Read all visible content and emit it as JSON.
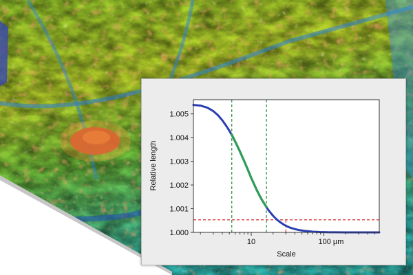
{
  "background": {
    "description_icon": "surface-topography-icon",
    "colors": [
      "#2f3aa8",
      "#1e8fd6",
      "#29c2c0",
      "#49b64a",
      "#a9cf2a",
      "#e6d62a",
      "#f0a33a",
      "#d8462e"
    ]
  },
  "chart_data": {
    "type": "line",
    "title": "",
    "xlabel": "Scale",
    "ylabel": "Relative length",
    "xscale": "log",
    "xlim": [
      1.6,
      580
    ],
    "ylim": [
      1.0,
      1.0056
    ],
    "xticks": [
      {
        "value": 10,
        "label": "10"
      },
      {
        "value": 100,
        "label": "100 µm"
      }
    ],
    "yticks": [
      {
        "value": 1.0,
        "label": "1.000"
      },
      {
        "value": 1.001,
        "label": "1.001"
      },
      {
        "value": 1.002,
        "label": "1.002"
      },
      {
        "value": 1.003,
        "label": "1.003"
      },
      {
        "value": 1.004,
        "label": "1.004"
      },
      {
        "value": 1.005,
        "label": "1.005"
      }
    ],
    "grid": false,
    "legend": "none",
    "series": [
      {
        "color": "#2a3eb1",
        "x": [
          1.6,
          2,
          2.5,
          3,
          3.5,
          4,
          4.5,
          5,
          5.5,
          6,
          6.5,
          7,
          8,
          9,
          10,
          11,
          12,
          13,
          14,
          15,
          16,
          17,
          18,
          20,
          22,
          25,
          28,
          30,
          32,
          35,
          40,
          45,
          50,
          55,
          60,
          70,
          80,
          90,
          100,
          120,
          150,
          200,
          250,
          300,
          400,
          500,
          580
        ],
        "y": [
          1.00538,
          1.00535,
          1.00526,
          1.00512,
          1.00494,
          1.00473,
          1.00451,
          1.00429,
          1.00406,
          1.00384,
          1.00362,
          1.00341,
          1.00301,
          1.00264,
          1.0023,
          1.00202,
          1.00177,
          1.00156,
          1.00138,
          1.00123,
          1.00109,
          1.00097,
          1.00087,
          1.0007,
          1.00057,
          1.00043,
          1.00033,
          1.00028,
          1.00024,
          1.00019,
          1.00014,
          1.0001,
          1.00008,
          1.00006,
          1.00005,
          1.00003,
          1.00002,
          1.00001,
          1.00001,
          1.000005,
          1.000002,
          1.0,
          1.0,
          1.0,
          1.0,
          1.0,
          1.0
        ]
      },
      {
        "color": "#2e9e55",
        "x": [
          5.4,
          6,
          6.5,
          7,
          8,
          9,
          10,
          11,
          12,
          13,
          14,
          15,
          16.2
        ],
        "y": [
          1.00413,
          1.00384,
          1.00362,
          1.00341,
          1.00301,
          1.00264,
          1.0023,
          1.00202,
          1.00177,
          1.00156,
          1.00138,
          1.00123,
          1.00108
        ]
      }
    ],
    "reference_lines": [
      {
        "orientation": "vertical",
        "x": 5.4,
        "color": "#1f8a3a",
        "style": "dashed"
      },
      {
        "orientation": "vertical",
        "x": 16.2,
        "color": "#1f8a3a",
        "style": "dashed"
      },
      {
        "orientation": "horizontal",
        "y": 1.00053,
        "color": "#d62a2a",
        "style": "dashed"
      },
      {
        "orientation": "vertical",
        "x": 30,
        "y_top": 1.00053,
        "color": "#d62a2a",
        "style": "dashed"
      }
    ]
  }
}
